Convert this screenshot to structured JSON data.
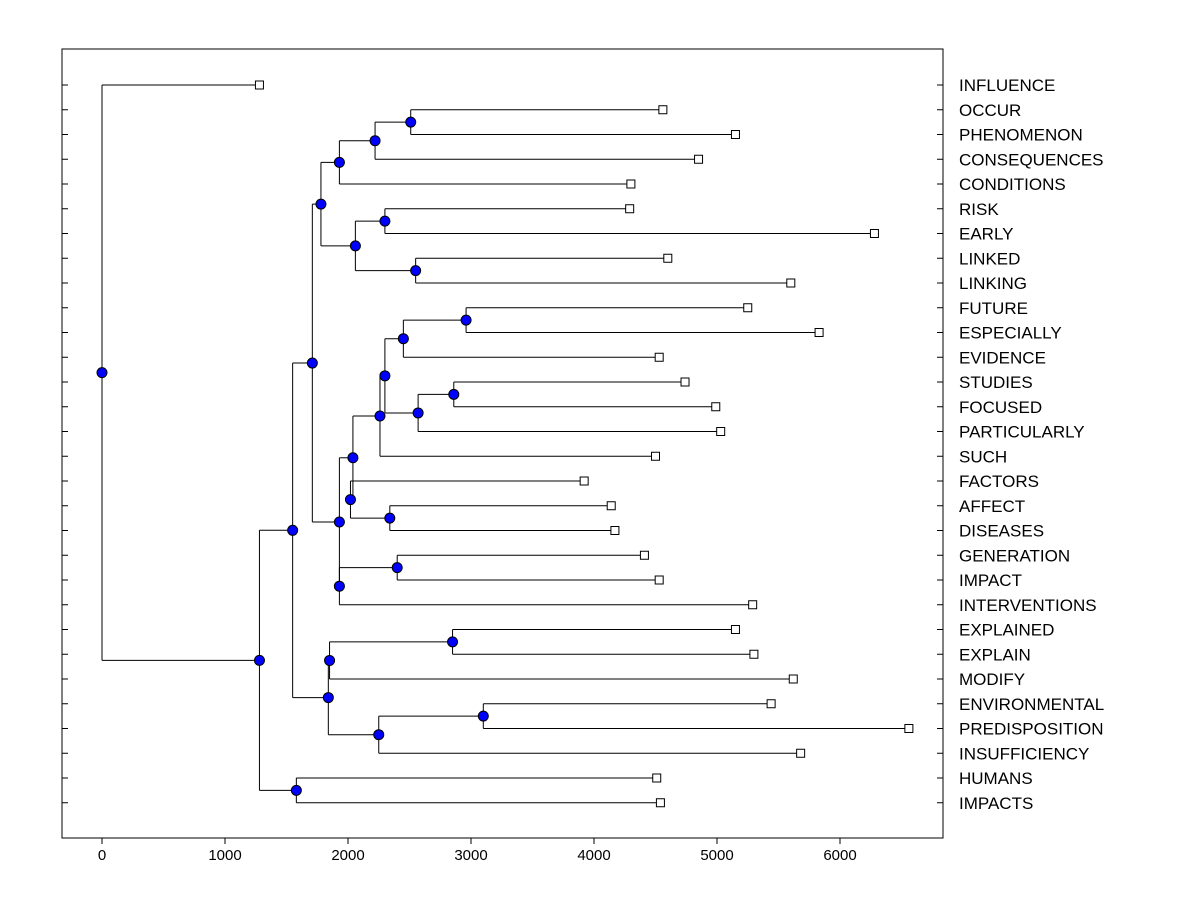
{
  "chart_data": {
    "type": "dendrogram",
    "orientation": "horizontal",
    "xlim": [
      -320,
      6900
    ],
    "xticks": [
      0,
      1000,
      2000,
      3000,
      4000,
      5000,
      6000
    ],
    "xtick_labels": [
      "0",
      "1000",
      "2000",
      "3000",
      "4000",
      "5000",
      "6000"
    ],
    "leaves": [
      {
        "label": "INFLUENCE",
        "x": 1280
      },
      {
        "label": "OCCUR",
        "x": 4560
      },
      {
        "label": "PHENOMENON",
        "x": 5150
      },
      {
        "label": "CONSEQUENCES",
        "x": 4850
      },
      {
        "label": "CONDITIONS",
        "x": 4300
      },
      {
        "label": "RISK",
        "x": 4290
      },
      {
        "label": "EARLY",
        "x": 6280
      },
      {
        "label": "LINKED",
        "x": 4600
      },
      {
        "label": "LINKING",
        "x": 5600
      },
      {
        "label": "FUTURE",
        "x": 5250
      },
      {
        "label": "ESPECIALLY",
        "x": 5830
      },
      {
        "label": "EVIDENCE",
        "x": 4530
      },
      {
        "label": "STUDIES",
        "x": 4740
      },
      {
        "label": "FOCUSED",
        "x": 4990
      },
      {
        "label": "PARTICULARLY",
        "x": 5030
      },
      {
        "label": "SUCH",
        "x": 4500
      },
      {
        "label": "FACTORS",
        "x": 3920
      },
      {
        "label": "AFFECT",
        "x": 4140
      },
      {
        "label": "DISEASES",
        "x": 4170
      },
      {
        "label": "GENERATION",
        "x": 4410
      },
      {
        "label": "IMPACT",
        "x": 4530
      },
      {
        "label": "INTERVENTIONS",
        "x": 5290
      },
      {
        "label": "EXPLAINED",
        "x": 5150
      },
      {
        "label": "EXPLAIN",
        "x": 5300
      },
      {
        "label": "MODIFY",
        "x": 5620
      },
      {
        "label": "ENVIRONMENTAL",
        "x": 5440
      },
      {
        "label": "PREDISPOSITION",
        "x": 6560
      },
      {
        "label": "INSUFFICIENCY",
        "x": 5680
      },
      {
        "label": "HUMANS",
        "x": 4510
      },
      {
        "label": "IMPACTS",
        "x": 4540
      }
    ],
    "merges": [
      {
        "id": "n_occur_phen",
        "x": 2510,
        "children": [
          "OCCUR",
          "PHENOMENON"
        ]
      },
      {
        "id": "n_op_cons",
        "x": 2220,
        "children": [
          "n_occur_phen",
          "CONSEQUENCES"
        ]
      },
      {
        "id": "n_opc_cond",
        "x": 1930,
        "children": [
          "n_op_cons",
          "CONDITIONS"
        ]
      },
      {
        "id": "n_risk_early",
        "x": 2300,
        "children": [
          "RISK",
          "EARLY"
        ]
      },
      {
        "id": "n_linked_linking",
        "x": 2550,
        "children": [
          "LINKED",
          "LINKING"
        ]
      },
      {
        "id": "n_re_ll",
        "x": 2060,
        "children": [
          "n_risk_early",
          "n_linked_linking"
        ]
      },
      {
        "id": "n_top",
        "x": 1780,
        "children": [
          "n_opc_cond",
          "n_re_ll"
        ]
      },
      {
        "id": "n_future_esp",
        "x": 2960,
        "children": [
          "FUTURE",
          "ESPECIALLY"
        ]
      },
      {
        "id": "n_fe_evid",
        "x": 2450,
        "children": [
          "n_future_esp",
          "EVIDENCE"
        ]
      },
      {
        "id": "n_stud_foc",
        "x": 2860,
        "children": [
          "STUDIES",
          "FOCUSED"
        ]
      },
      {
        "id": "n_sf_part",
        "x": 2570,
        "children": [
          "n_stud_foc",
          "PARTICULARLY"
        ]
      },
      {
        "id": "n_fee_sfp",
        "x": 2300,
        "children": [
          "n_fe_evid",
          "n_sf_part"
        ]
      },
      {
        "id": "n_x_such",
        "x": 2260,
        "children": [
          "n_fee_sfp",
          "SUCH"
        ]
      },
      {
        "id": "n_aff_dis",
        "x": 2340,
        "children": [
          "AFFECT",
          "DISEASES"
        ]
      },
      {
        "id": "n_fact_ad",
        "x": 2020,
        "children": [
          "FACTORS",
          "n_aff_dis"
        ]
      },
      {
        "id": "n_xs_fad",
        "x": 2040,
        "children": [
          "n_x_such",
          "n_fact_ad"
        ]
      },
      {
        "id": "n_gen_imp",
        "x": 2400,
        "children": [
          "GENERATION",
          "IMPACT"
        ]
      },
      {
        "id": "n_gi_int",
        "x": 1930,
        "children": [
          "n_gen_imp",
          "INTERVENTIONS"
        ]
      },
      {
        "id": "n_mid",
        "x": 1930,
        "children": [
          "n_xs_fad",
          "n_gi_int"
        ]
      },
      {
        "id": "n_upper",
        "x": 1710,
        "children": [
          "n_top",
          "n_mid"
        ]
      },
      {
        "id": "n_expd_exp",
        "x": 2850,
        "children": [
          "EXPLAINED",
          "EXPLAIN"
        ]
      },
      {
        "id": "n_ee_mod",
        "x": 1850,
        "children": [
          "n_expd_exp",
          "MODIFY"
        ]
      },
      {
        "id": "n_env_pred",
        "x": 3100,
        "children": [
          "ENVIRONMENTAL",
          "PREDISPOSITION"
        ]
      },
      {
        "id": "n_ep_ins",
        "x": 2250,
        "children": [
          "n_env_pred",
          "INSUFFICIENCY"
        ]
      },
      {
        "id": "n_lower",
        "x": 1840,
        "children": [
          "n_ee_mod",
          "n_ep_ins"
        ]
      },
      {
        "id": "n_ul",
        "x": 1550,
        "children": [
          "n_upper",
          "n_lower"
        ]
      },
      {
        "id": "n_hum_imps",
        "x": 1580,
        "children": [
          "HUMANS",
          "IMPACTS"
        ]
      },
      {
        "id": "n_big",
        "x": 1280,
        "children": [
          "n_ul",
          "n_hum_imps"
        ]
      },
      {
        "id": "n_root",
        "x": 0,
        "children": [
          "INFLUENCE",
          "n_big"
        ]
      }
    ],
    "colors": {
      "node_fill": "#0000ff",
      "leaf_fill": "#ffffff",
      "line": "#000000"
    },
    "grid": false
  }
}
